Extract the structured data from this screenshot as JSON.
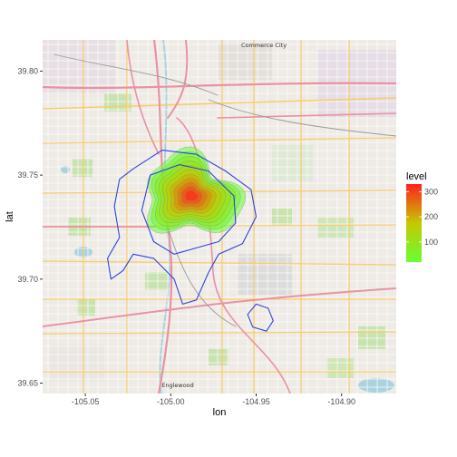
{
  "chart_data": {
    "type": "contour",
    "title": "",
    "xlabel": "lon",
    "ylabel": "lat",
    "xlim": [
      -105.075,
      -104.868
    ],
    "ylim": [
      39.645,
      39.815
    ],
    "x_ticks": [
      -105.05,
      -105.0,
      -104.95,
      -104.9
    ],
    "x_tick_labels": [
      "-105.05",
      "-105.00",
      "-104.95",
      "-104.90"
    ],
    "y_ticks": [
      39.65,
      39.7,
      39.75,
      39.8
    ],
    "y_tick_labels": [
      "39.65",
      "39.70",
      "39.75",
      "39.80"
    ],
    "legend": {
      "title": "level",
      "position": "right",
      "min": 20,
      "max": 330,
      "ticks": [
        100,
        200,
        300
      ],
      "tick_labels": [
        "100",
        "200",
        "300"
      ],
      "color_low": "#66ff33",
      "color_high": "#ff2020"
    },
    "density_peak": {
      "lon": -104.988,
      "lat": 39.74,
      "level": 330
    },
    "outline_color": "#2b44e0",
    "basemap_labels": [
      "Commerce City",
      "Englewood"
    ]
  }
}
